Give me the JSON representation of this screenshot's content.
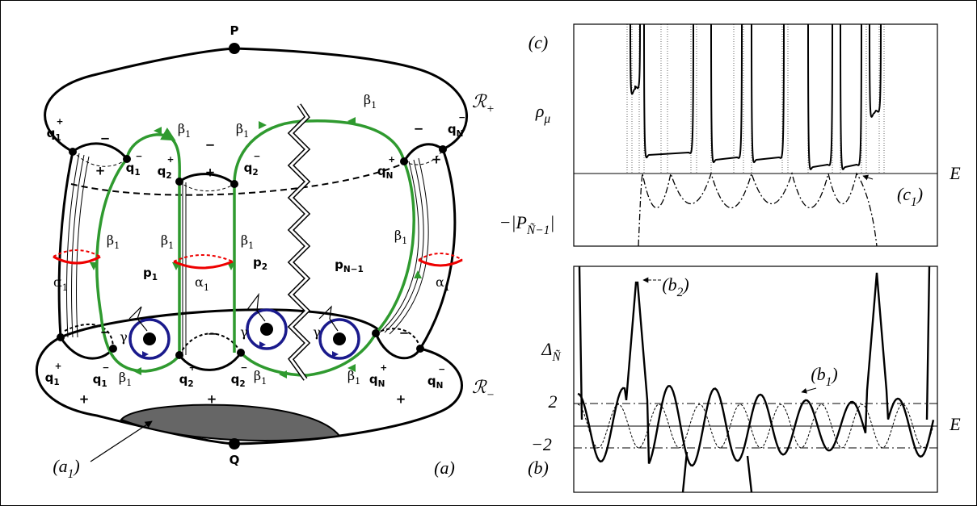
{
  "diagram": {
    "labels": [
      {
        "base": "P"
      },
      {
        "base": "Q"
      },
      {
        "base": "ℛ",
        "sub": "+"
      },
      {
        "base": "ℛ",
        "sub": "−"
      },
      {
        "base": "q",
        "sub": "1",
        "sup": "+"
      },
      {
        "base": "q",
        "sub": "1",
        "sup": "−"
      },
      {
        "base": "q",
        "sub": "2",
        "sup": "+"
      },
      {
        "base": "q",
        "sub": "2",
        "sup": "−"
      },
      {
        "base": "q",
        "sub": "N",
        "sup": "+"
      },
      {
        "base": "q",
        "sub": "N",
        "sup": "−"
      },
      {
        "base": "q",
        "sub": "1",
        "sup": "+"
      },
      {
        "base": "q",
        "sub": "1",
        "sup": "−"
      },
      {
        "base": "q",
        "sub": "2",
        "sup": "+"
      },
      {
        "base": "q",
        "sub": "2",
        "sup": "−"
      },
      {
        "base": "q",
        "sub": "N",
        "sup": "+"
      },
      {
        "base": "q",
        "sub": "N",
        "sup": "−"
      },
      {
        "base": "p",
        "sub": "1"
      },
      {
        "base": "p",
        "sub": "2"
      },
      {
        "base": "p",
        "sub": "N−1"
      },
      {
        "base": "α",
        "sub": "1"
      },
      {
        "base": "α",
        "sub": "1"
      },
      {
        "base": "α",
        "sub": "1"
      },
      {
        "base": "γ"
      },
      {
        "base": "γ"
      },
      {
        "base": "γ"
      },
      {
        "base": "β",
        "sub": "1"
      },
      {
        "base": "β",
        "sub": "1"
      },
      {
        "base": "β",
        "sub": "1"
      },
      {
        "base": "β",
        "sub": "1"
      },
      {
        "base": "β",
        "sub": "1"
      },
      {
        "base": "β",
        "sub": "1"
      },
      {
        "base": "β",
        "sub": "1"
      },
      {
        "base": "β",
        "sub": "1"
      },
      {
        "base": "β",
        "sub": "1"
      },
      {
        "base": "β",
        "sub": "1"
      },
      {
        "base": "(a",
        "sub": "1",
        "tail": ")"
      },
      {
        "base": "(a)"
      }
    ],
    "signs": [
      "−",
      "+",
      "−",
      "+",
      "−",
      "+",
      "−",
      "+",
      "−",
      "+",
      "−",
      "+"
    ]
  },
  "plots": {
    "labels": [
      {
        "base": "(c)"
      },
      {
        "base": "ρ",
        "sub": "μ"
      },
      {
        "base": "E"
      },
      {
        "base": "−|P",
        "sub": "Ñ−1",
        "tail": "|"
      },
      {
        "base": "(c",
        "sub": "1",
        "tail": ")"
      },
      {
        "base": "(b",
        "sub": "2",
        "tail": ")"
      },
      {
        "base": "(b",
        "sub": "1",
        "tail": ")"
      },
      {
        "base": "Δ",
        "sub": "Ñ"
      },
      {
        "base": "2"
      },
      {
        "base": "−2"
      },
      {
        "base": "E"
      },
      {
        "base": "(b)"
      }
    ]
  }
}
